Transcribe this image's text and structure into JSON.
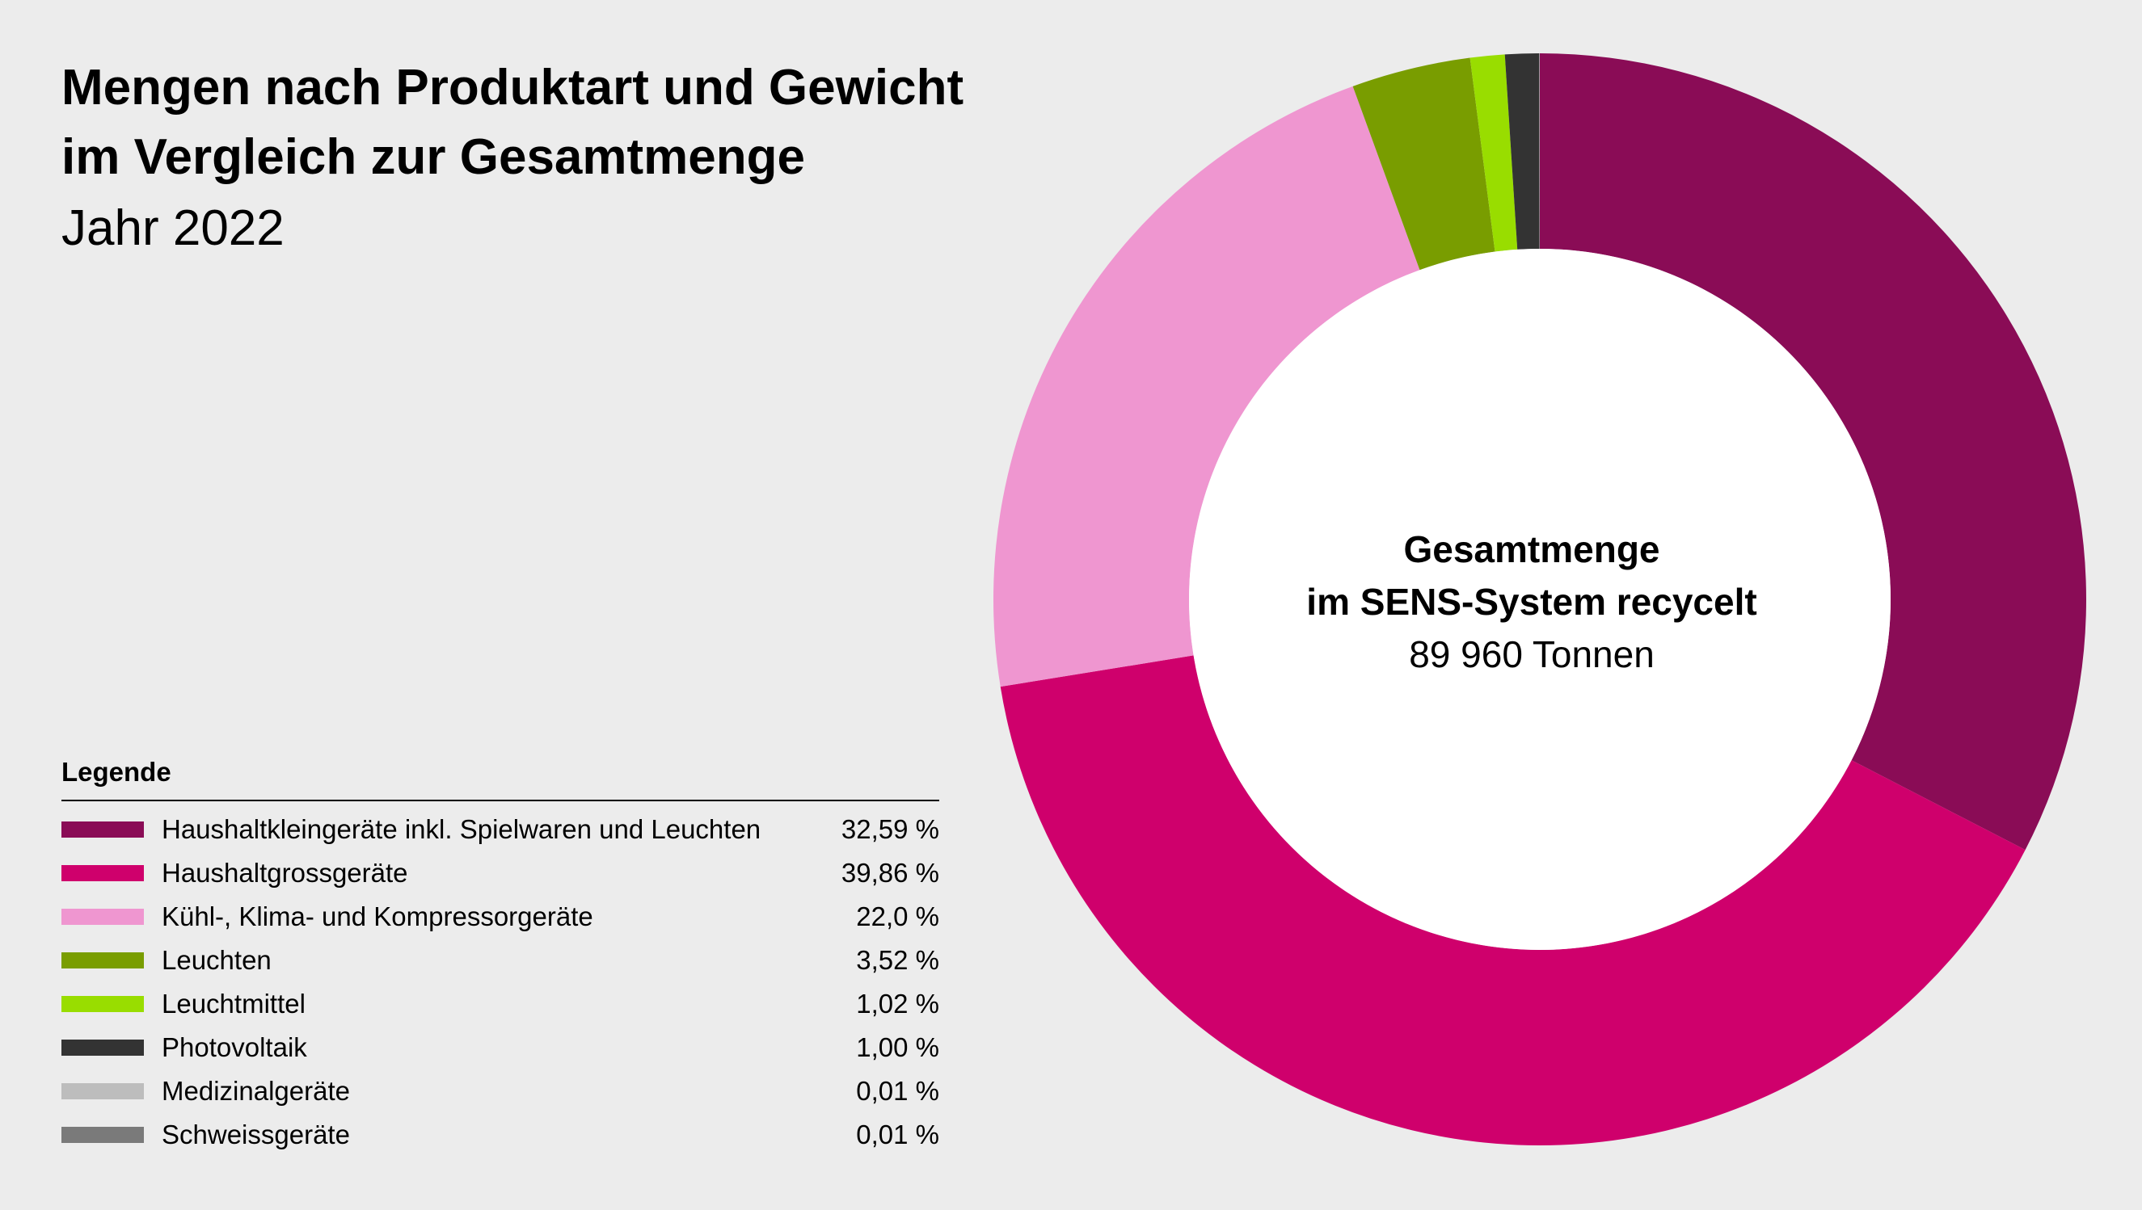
{
  "header": {
    "title_line1": "Mengen nach Produktart und Gewicht",
    "title_line2": "im Vergleich zur Gesamtmenge",
    "subtitle": "Jahr 2022"
  },
  "center": {
    "line1": "Gesamtmenge",
    "line2": "im SENS-System recycelt",
    "line3": "89 960 Tonnen"
  },
  "legend": {
    "heading": "Legende",
    "items": [
      {
        "label": "Haushaltkleingeräte inkl. Spielwaren und Leuchten",
        "value_text": "32,59 %",
        "color": "#8a0c56"
      },
      {
        "label": "Haushaltgrossgeräte",
        "value_text": "39,86 %",
        "color": "#cf006c"
      },
      {
        "label": "Kühl-, Klima- und Kompressorgeräte",
        "value_text": "22,0 %",
        "color": "#ef96d0"
      },
      {
        "label": "Leuchten",
        "value_text": "3,52 %",
        "color": "#799d00"
      },
      {
        "label": "Leuchtmittel",
        "value_text": "1,02 %",
        "color": "#99dd00"
      },
      {
        "label": "Photovoltaik",
        "value_text": "1,00 %",
        "color": "#333333"
      },
      {
        "label": "Medizinalgeräte",
        "value_text": "0,01 %",
        "color": "#bdbdbd"
      },
      {
        "label": "Schweissgeräte",
        "value_text": "0,01 %",
        "color": "#7a7a7a"
      }
    ]
  },
  "chart_data": {
    "type": "pie",
    "donut": true,
    "start": "top",
    "direction": "clockwise",
    "categories": [
      "Haushaltkleingeräte inkl. Spielwaren und Leuchten",
      "Haushaltgrossgeräte",
      "Kühl-, Klima- und Kompressorgeräte",
      "Leuchten",
      "Leuchtmittel",
      "Photovoltaik",
      "Medizinalgeräte",
      "Schweissgeräte"
    ],
    "values": [
      32.59,
      39.86,
      22.0,
      3.52,
      1.02,
      1.0,
      0.01,
      0.01
    ],
    "colors": [
      "#8a0c56",
      "#cf006c",
      "#ef96d0",
      "#799d00",
      "#99dd00",
      "#333333",
      "#bdbdbd",
      "#7a7a7a"
    ]
  }
}
